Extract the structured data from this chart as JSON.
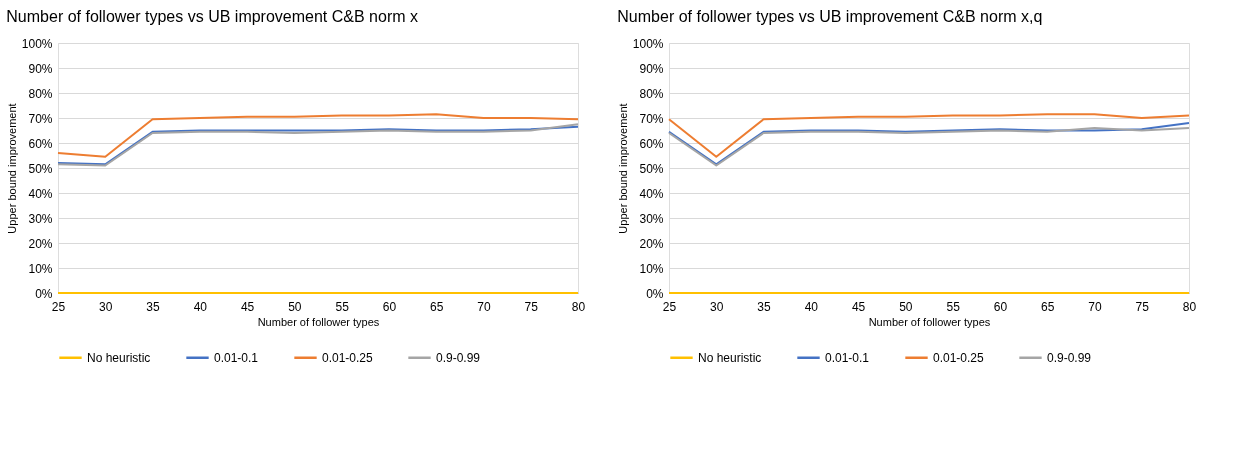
{
  "chart_data": [
    {
      "type": "line",
      "title": "Number of follower types vs UB improvement C&B norm x",
      "xlabel": "Number of follower types",
      "ylabel": "Upper bound improvement",
      "categories": [
        "25",
        "30",
        "35",
        "40",
        "45",
        "50",
        "55",
        "60",
        "65",
        "70",
        "75",
        "80"
      ],
      "series": [
        {
          "name": "No heuristic",
          "color": "#ffc000",
          "values": [
            0,
            0,
            0,
            0,
            0,
            0,
            0,
            0,
            0,
            0,
            0,
            0
          ]
        },
        {
          "name": "0.01-0.1",
          "color": "#4472c4",
          "values": [
            52,
            51.5,
            64.5,
            65,
            65,
            65,
            65,
            65.5,
            65,
            65,
            65.5,
            66.5
          ]
        },
        {
          "name": "0.01-0.25",
          "color": "#ed7d31",
          "values": [
            56,
            54.5,
            69.5,
            70,
            70.5,
            70.5,
            71,
            71,
            71.5,
            70,
            70,
            69.5
          ]
        },
        {
          "name": "0.9-0.99",
          "color": "#a5a5a5",
          "values": [
            51.5,
            51,
            64,
            64.5,
            64.5,
            64,
            64.5,
            65,
            64.5,
            64.5,
            65,
            67.5
          ]
        }
      ],
      "ylim": [
        0,
        100
      ],
      "yticks": [
        {
          "value": 0,
          "label": "0%"
        },
        {
          "value": 10,
          "label": "10%"
        },
        {
          "value": 20,
          "label": "20%"
        },
        {
          "value": 30,
          "label": "30%"
        },
        {
          "value": 40,
          "label": "40%"
        },
        {
          "value": 50,
          "label": "50%"
        },
        {
          "value": 60,
          "label": "60%"
        },
        {
          "value": 70,
          "label": "70%"
        },
        {
          "value": 80,
          "label": "80%"
        },
        {
          "value": 90,
          "label": "90%"
        },
        {
          "value": 100,
          "label": "100%"
        }
      ],
      "grid": "y",
      "legend": "bottom",
      "marker": "none",
      "line_style": "solid"
    },
    {
      "type": "line",
      "title": "Number of follower types vs UB improvement C&B norm x,q",
      "xlabel": "Number of follower types",
      "ylabel": "Upper bound improvement",
      "categories": [
        "25",
        "30",
        "35",
        "40",
        "45",
        "50",
        "55",
        "60",
        "65",
        "70",
        "75",
        "80"
      ],
      "series": [
        {
          "name": "No heuristic",
          "color": "#ffc000",
          "values": [
            0,
            0,
            0,
            0,
            0,
            0,
            0,
            0,
            0,
            0,
            0,
            0
          ]
        },
        {
          "name": "0.01-0.1",
          "color": "#4472c4",
          "values": [
            64.5,
            51.5,
            64.5,
            65,
            65,
            64.5,
            65,
            65.5,
            65,
            65,
            65.5,
            68
          ]
        },
        {
          "name": "0.01-0.25",
          "color": "#ed7d31",
          "values": [
            69.5,
            54.5,
            69.5,
            70,
            70.5,
            70.5,
            71,
            71,
            71.5,
            71.5,
            70,
            71
          ]
        },
        {
          "name": "0.9-0.99",
          "color": "#a5a5a5",
          "values": [
            64,
            51,
            64,
            64.5,
            64.5,
            64,
            64.5,
            65,
            64.5,
            66,
            65,
            66
          ]
        }
      ],
      "ylim": [
        0,
        100
      ],
      "yticks": [
        {
          "value": 0,
          "label": "0%"
        },
        {
          "value": 10,
          "label": "10%"
        },
        {
          "value": 20,
          "label": "20%"
        },
        {
          "value": 30,
          "label": "30%"
        },
        {
          "value": 40,
          "label": "40%"
        },
        {
          "value": 50,
          "label": "50%"
        },
        {
          "value": 60,
          "label": "60%"
        },
        {
          "value": 70,
          "label": "70%"
        },
        {
          "value": 80,
          "label": "80%"
        },
        {
          "value": 90,
          "label": "90%"
        },
        {
          "value": 100,
          "label": "100%"
        }
      ],
      "grid": "y",
      "legend": "bottom",
      "marker": "none",
      "line_style": "solid"
    }
  ]
}
